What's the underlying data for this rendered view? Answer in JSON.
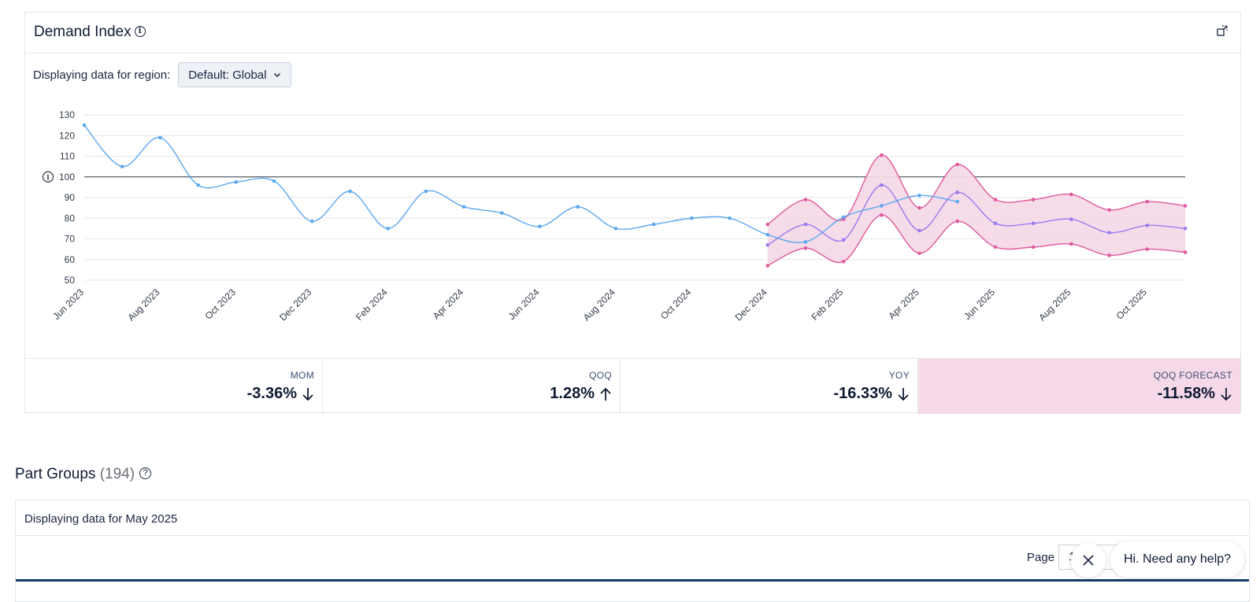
{
  "demand": {
    "title": "Demand Index",
    "region_label": "Displaying data for region:",
    "region_value": "Default: Global"
  },
  "stats": [
    {
      "label": "MOM",
      "value": "-3.36%",
      "direction": "down"
    },
    {
      "label": "QOQ",
      "value": "1.28%",
      "direction": "up"
    },
    {
      "label": "YOY",
      "value": "-16.33%",
      "direction": "down"
    },
    {
      "label": "QOQ FORECAST",
      "value": "-11.58%",
      "direction": "down"
    }
  ],
  "part_groups": {
    "title": "Part Groups",
    "count": "(194)",
    "note": "Displaying data for May 2025",
    "page_label": "Page",
    "page_value": "1"
  },
  "chat": {
    "help_text": "Hi. Need any help?"
  },
  "colors": {
    "actual": "#5aa8ef",
    "forecast": "#9a7cf0",
    "band": "#de5a9c",
    "band_fill": "#f6d9e8"
  },
  "chart_data": {
    "type": "line",
    "ylim": [
      50,
      130
    ],
    "yticks": [
      50,
      60,
      70,
      80,
      90,
      100,
      110,
      120,
      130
    ],
    "reference_line": 100,
    "x_labels": [
      "Jun 2023",
      "Aug 2023",
      "Oct 2023",
      "Dec 2023",
      "Feb 2024",
      "Apr 2024",
      "Jun 2024",
      "Aug 2024",
      "Oct 2024",
      "Dec 2024",
      "Feb 2025",
      "Apr 2025",
      "Jun 2025",
      "Aug 2025",
      "Oct 2025"
    ],
    "x": [
      "Jun 2023",
      "Jul 2023",
      "Aug 2023",
      "Sep 2023",
      "Oct 2023",
      "Nov 2023",
      "Dec 2023",
      "Jan 2024",
      "Feb 2024",
      "Mar 2024",
      "Apr 2024",
      "May 2024",
      "Jun 2024",
      "Jul 2024",
      "Aug 2024",
      "Sep 2024",
      "Oct 2024",
      "Nov 2024",
      "Dec 2024",
      "Jan 2025",
      "Feb 2025",
      "Mar 2025",
      "Apr 2025",
      "May 2025",
      "Jun 2025",
      "Jul 2025",
      "Aug 2025",
      "Sep 2025",
      "Oct 2025",
      "Nov 2025"
    ],
    "series": [
      {
        "key": "actual",
        "values": [
          125,
          105,
          119,
          96,
          97.5,
          98,
          78.5,
          93,
          75,
          93,
          85.5,
          82.5,
          76,
          85.5,
          75,
          77,
          80,
          80,
          72,
          68.5,
          80.5,
          86,
          91,
          88,
          null,
          null,
          null,
          null,
          null,
          null
        ]
      },
      {
        "key": "forecast",
        "values": [
          null,
          null,
          null,
          null,
          null,
          null,
          null,
          null,
          null,
          null,
          null,
          null,
          null,
          null,
          null,
          null,
          null,
          null,
          67,
          77,
          69.5,
          96,
          74,
          92.5,
          77.5,
          77.5,
          79.5,
          73,
          76.5,
          75
        ]
      },
      {
        "key": "upper",
        "values": [
          null,
          null,
          null,
          null,
          null,
          null,
          null,
          null,
          null,
          null,
          null,
          null,
          null,
          null,
          null,
          null,
          null,
          null,
          77,
          89,
          79.5,
          110.5,
          85,
          106,
          89,
          89,
          91.5,
          84,
          88,
          86
        ]
      },
      {
        "key": "lower",
        "values": [
          null,
          null,
          null,
          null,
          null,
          null,
          null,
          null,
          null,
          null,
          null,
          null,
          null,
          null,
          null,
          null,
          null,
          null,
          57,
          65.5,
          59,
          81.5,
          63,
          78.5,
          66,
          66,
          67.5,
          62,
          65,
          63.5
        ]
      }
    ]
  }
}
